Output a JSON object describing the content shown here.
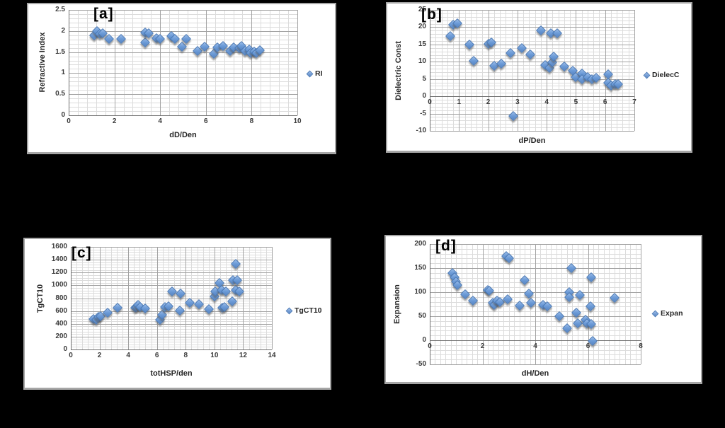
{
  "figure": {
    "background": "#000000",
    "marker_fill": "#6f9dd8",
    "marker_border": "#4a79b5",
    "grid_minor_color": "#dcdcdc",
    "grid_major_color": "#a3a3a3"
  },
  "chart_data": [
    {
      "type": "scatter",
      "panel_label": "[a]",
      "legend": "RI",
      "xlabel": "dD/Den",
      "ylabel": "Refractive Index",
      "xlim": [
        0,
        10
      ],
      "ylim": [
        0,
        2.5
      ],
      "xticks": [
        0,
        2,
        4,
        6,
        8,
        10
      ],
      "yticks": [
        0,
        0.5,
        1,
        1.5,
        2,
        2.5
      ],
      "x_minor": 0.4,
      "y_minor": 0.1,
      "x_axis_at_zero": false,
      "grid": true,
      "legend_position": "right",
      "points": [
        [
          1.1,
          1.9
        ],
        [
          1.25,
          2.0
        ],
        [
          1.35,
          1.93
        ],
        [
          1.5,
          1.95
        ],
        [
          1.75,
          1.82
        ],
        [
          2.3,
          1.82
        ],
        [
          3.35,
          1.73
        ],
        [
          3.35,
          1.97
        ],
        [
          3.5,
          1.94
        ],
        [
          3.85,
          1.83
        ],
        [
          4.0,
          1.82
        ],
        [
          4.5,
          1.88
        ],
        [
          4.65,
          1.82
        ],
        [
          4.95,
          1.63
        ],
        [
          5.15,
          1.81
        ],
        [
          5.65,
          1.52
        ],
        [
          5.95,
          1.62
        ],
        [
          6.35,
          1.46
        ],
        [
          6.5,
          1.61
        ],
        [
          6.75,
          1.65
        ],
        [
          7.05,
          1.53
        ],
        [
          7.2,
          1.61
        ],
        [
          7.45,
          1.59
        ],
        [
          7.55,
          1.65
        ],
        [
          7.7,
          1.53
        ],
        [
          7.9,
          1.56
        ],
        [
          7.95,
          1.48
        ],
        [
          8.1,
          1.51
        ],
        [
          8.2,
          1.48
        ],
        [
          8.35,
          1.54
        ]
      ]
    },
    {
      "type": "scatter",
      "panel_label": "[b]",
      "legend": "DielecC",
      "xlabel": "dP/Den",
      "ylabel": "Dielectric Const",
      "xlim": [
        0,
        7
      ],
      "ylim": [
        -10,
        25
      ],
      "xticks": [
        0,
        1,
        2,
        3,
        4,
        5,
        6,
        7
      ],
      "yticks": [
        -10,
        -5,
        0,
        5,
        10,
        15,
        20,
        25
      ],
      "x_minor": 0.2,
      "y_minor": 1,
      "x_axis_at_zero": true,
      "grid": true,
      "legend_position": "right",
      "points": [
        [
          0.7,
          17.5
        ],
        [
          0.8,
          20.7
        ],
        [
          0.95,
          21.2
        ],
        [
          1.35,
          15.0
        ],
        [
          1.5,
          10.3
        ],
        [
          2.0,
          15.2
        ],
        [
          2.1,
          15.6
        ],
        [
          2.2,
          8.8
        ],
        [
          2.45,
          9.5
        ],
        [
          2.75,
          12.5
        ],
        [
          2.85,
          -5.8
        ],
        [
          3.15,
          14.0
        ],
        [
          3.45,
          12.2
        ],
        [
          3.8,
          19.0
        ],
        [
          4.15,
          18.2
        ],
        [
          4.35,
          18.3
        ],
        [
          3.95,
          9.0
        ],
        [
          4.1,
          8.2
        ],
        [
          4.2,
          9.9
        ],
        [
          4.25,
          11.5
        ],
        [
          4.6,
          8.7
        ],
        [
          4.9,
          7.5
        ],
        [
          5.0,
          5.5
        ],
        [
          5.2,
          6.6
        ],
        [
          5.2,
          5.0
        ],
        [
          5.4,
          5.6
        ],
        [
          5.55,
          5.0
        ],
        [
          5.7,
          5.3
        ],
        [
          6.1,
          6.4
        ],
        [
          6.1,
          4.0
        ],
        [
          6.2,
          3.2
        ],
        [
          6.35,
          3.6
        ],
        [
          6.45,
          3.5
        ]
      ]
    },
    {
      "type": "scatter",
      "panel_label": "[c]",
      "legend": "TgCT10",
      "xlabel": "totHSP/den",
      "ylabel": "TgCT10",
      "xlim": [
        0,
        14
      ],
      "ylim": [
        0,
        1600
      ],
      "xticks": [
        0,
        2,
        4,
        6,
        8,
        10,
        12,
        14
      ],
      "yticks": [
        0,
        200,
        400,
        600,
        800,
        1000,
        1200,
        1400,
        1600
      ],
      "x_minor": 0.4,
      "y_minor": 40,
      "x_axis_at_zero": false,
      "grid": true,
      "legend_position": "right",
      "points": [
        [
          1.6,
          480
        ],
        [
          1.75,
          465
        ],
        [
          1.9,
          505
        ],
        [
          2.05,
          520
        ],
        [
          2.55,
          570
        ],
        [
          3.25,
          650
        ],
        [
          4.5,
          650
        ],
        [
          4.6,
          660
        ],
        [
          4.7,
          700
        ],
        [
          4.85,
          665
        ],
        [
          5.2,
          645
        ],
        [
          6.2,
          460
        ],
        [
          6.35,
          545
        ],
        [
          6.55,
          660
        ],
        [
          6.8,
          670
        ],
        [
          7.05,
          905
        ],
        [
          7.6,
          610
        ],
        [
          7.65,
          875
        ],
        [
          8.3,
          725
        ],
        [
          8.9,
          705
        ],
        [
          9.6,
          630
        ],
        [
          10.0,
          830
        ],
        [
          10.05,
          905
        ],
        [
          10.35,
          1040
        ],
        [
          10.5,
          925
        ],
        [
          10.55,
          650
        ],
        [
          10.7,
          660
        ],
        [
          10.8,
          905
        ],
        [
          11.25,
          745
        ],
        [
          11.3,
          1080
        ],
        [
          11.5,
          1335
        ],
        [
          11.5,
          925
        ],
        [
          11.6,
          1085
        ],
        [
          11.75,
          905
        ]
      ]
    },
    {
      "type": "scatter",
      "panel_label": "[d]",
      "legend": "Expan",
      "xlabel": "dH/Den",
      "ylabel": "Expansion",
      "xlim": [
        0,
        8
      ],
      "ylim": [
        -50,
        200
      ],
      "xticks": [
        0,
        2,
        4,
        6,
        8
      ],
      "yticks": [
        -50,
        0,
        50,
        100,
        150,
        200
      ],
      "x_minor": 0.2,
      "y_minor": 10,
      "x_axis_at_zero": true,
      "grid": true,
      "legend_position": "right",
      "points": [
        [
          0.85,
          140
        ],
        [
          0.95,
          131
        ],
        [
          1.0,
          122
        ],
        [
          1.05,
          115
        ],
        [
          1.35,
          95
        ],
        [
          1.65,
          83
        ],
        [
          2.2,
          105
        ],
        [
          2.25,
          103
        ],
        [
          2.4,
          78
        ],
        [
          2.45,
          74
        ],
        [
          2.55,
          83
        ],
        [
          2.65,
          80
        ],
        [
          2.9,
          175
        ],
        [
          3.0,
          170
        ],
        [
          2.95,
          85
        ],
        [
          3.4,
          72
        ],
        [
          3.6,
          125
        ],
        [
          3.75,
          97
        ],
        [
          3.85,
          78
        ],
        [
          4.3,
          74
        ],
        [
          4.45,
          70
        ],
        [
          4.9,
          50
        ],
        [
          5.2,
          25
        ],
        [
          5.28,
          100
        ],
        [
          5.28,
          90
        ],
        [
          5.37,
          150
        ],
        [
          5.55,
          57
        ],
        [
          5.6,
          35
        ],
        [
          5.68,
          94
        ],
        [
          5.9,
          43
        ],
        [
          5.95,
          35
        ],
        [
          6.09,
          70
        ],
        [
          6.12,
          131
        ],
        [
          6.12,
          34
        ],
        [
          6.17,
          -2
        ],
        [
          7.0,
          88
        ]
      ]
    }
  ]
}
